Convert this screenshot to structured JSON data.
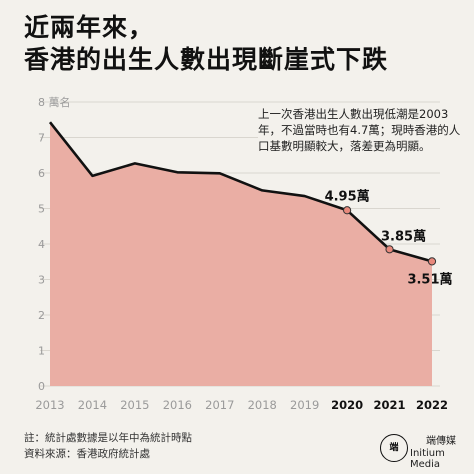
{
  "header": {
    "title_line1": "近兩年來，",
    "title_line2": "香港的出生人數出現斷崖式下跌"
  },
  "annotation": "上一次香港出生人數出現低潮是2003年，不過當時也有4.7萬；現時香港的人口基數明顯較大，落差更為明顯。",
  "footer": {
    "note": "註：統計處數據是以年中為統計時點",
    "source": "資料來源：香港政府統計處"
  },
  "logo": {
    "mark": "端",
    "cn": "端傳媒",
    "en": "Initium Media"
  },
  "colors": {
    "background": "#f3f1ec",
    "area_fill": "#eaaea4",
    "line": "#111111",
    "highlight_marker": "#e8897c",
    "grid": "#d9d6cf"
  },
  "chart_data": {
    "type": "area",
    "title": "",
    "xlabel": "",
    "ylabel": "",
    "y_unit_label": "萬名",
    "x": [
      "2013",
      "2014",
      "2015",
      "2016",
      "2017",
      "2018",
      "2019",
      "2020",
      "2021",
      "2022"
    ],
    "series": [
      {
        "values": [
          7.43,
          5.92,
          6.27,
          6.02,
          5.99,
          5.51,
          5.35,
          4.95,
          3.85,
          3.51
        ]
      }
    ],
    "ylim": [
      0,
      8
    ],
    "yticks": [
      0,
      1,
      2,
      3,
      4,
      5,
      6,
      7,
      8
    ],
    "grid": true,
    "highlighted_x": [
      "2020",
      "2021",
      "2022"
    ],
    "data_labels": [
      {
        "x": "2020",
        "text": "4.95萬"
      },
      {
        "x": "2021",
        "text": "3.85萬"
      },
      {
        "x": "2022",
        "text": "3.51萬"
      }
    ]
  }
}
